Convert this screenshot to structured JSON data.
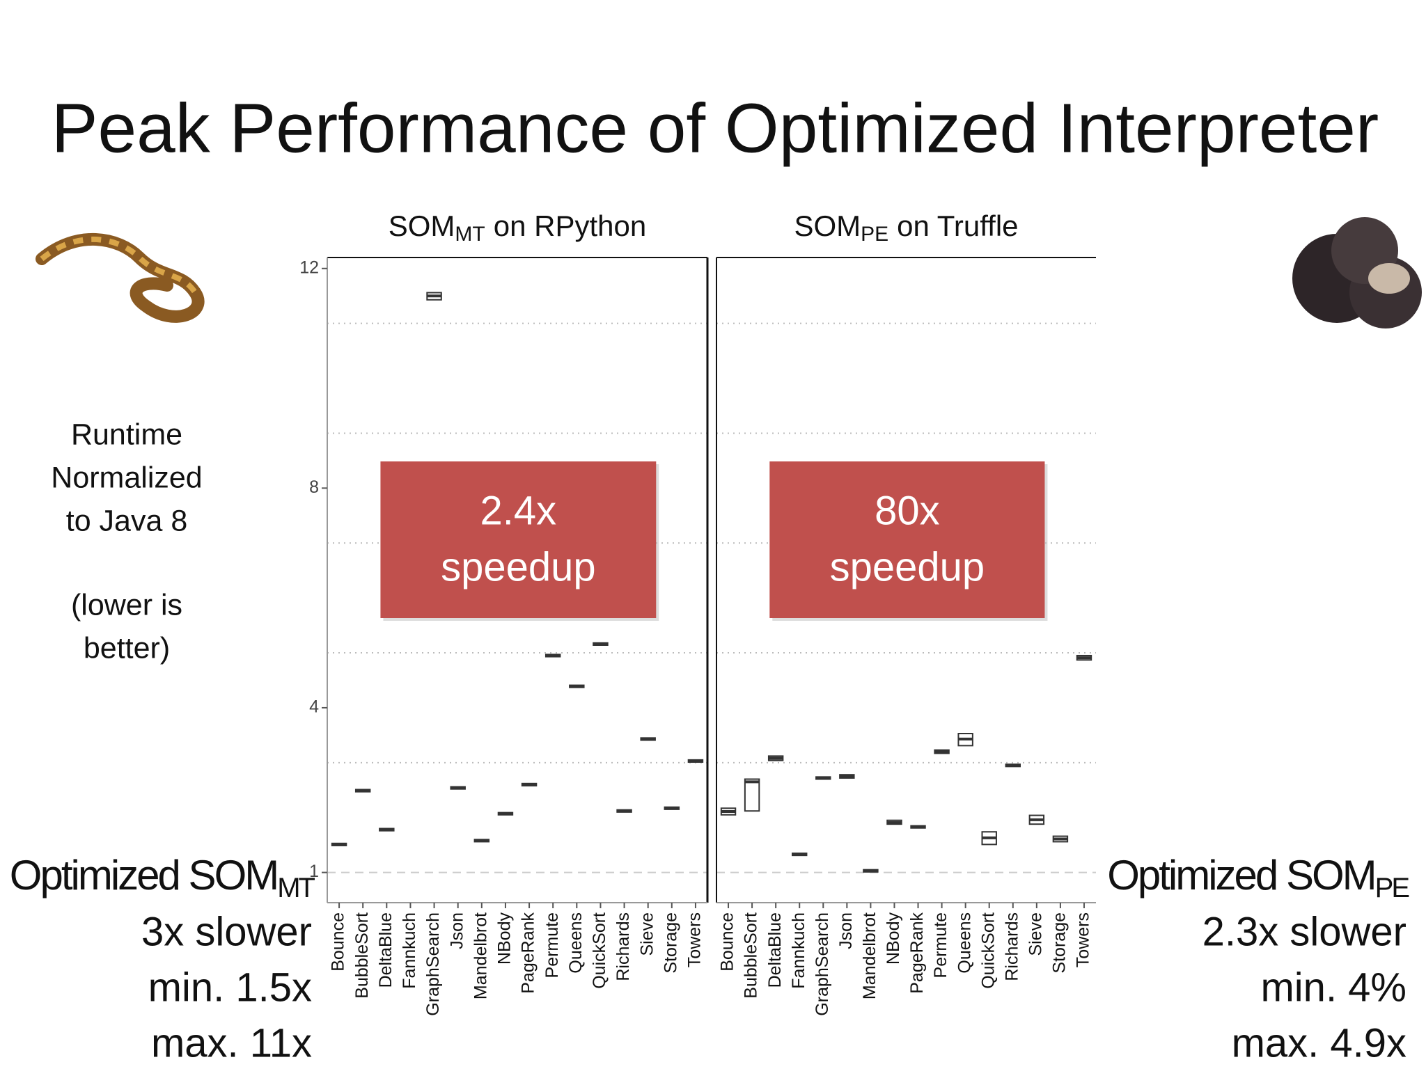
{
  "title": "Peak Performance of Optimized Interpreter",
  "y_label": [
    "Runtime",
    "Normalized",
    "to Java 8"
  ],
  "y_note": [
    "(lower is",
    "better)"
  ],
  "chart_data": [
    {
      "type": "box",
      "title_parts": [
        "SOM",
        "MT",
        "on RPython"
      ],
      "categories": [
        "Bounce",
        "BubbleSort",
        "DeltaBlue",
        "Fannkuch",
        "GraphSearch",
        "Json",
        "Mandelbrot",
        "NBody",
        "PageRank",
        "Permute",
        "Queens",
        "QuickSort",
        "Richards",
        "Sieve",
        "Storage",
        "Towers"
      ],
      "median": [
        1.51,
        2.49,
        1.78,
        null,
        11.5,
        2.54,
        1.58,
        2.07,
        2.6,
        4.95,
        4.39,
        5.16,
        2.12,
        3.43,
        2.17,
        3.03
      ],
      "q1": [
        1.49,
        2.47,
        1.76,
        null,
        11.43,
        2.52,
        1.56,
        2.05,
        2.58,
        4.93,
        4.37,
        5.14,
        2.1,
        3.41,
        2.15,
        3.01
      ],
      "q3": [
        1.53,
        2.51,
        1.8,
        null,
        11.56,
        2.56,
        1.6,
        2.09,
        2.62,
        4.97,
        4.41,
        5.18,
        2.14,
        3.45,
        2.19,
        3.05
      ],
      "ylim": [
        0.45,
        12.2
      ],
      "yticks": [
        1,
        4,
        8,
        12
      ],
      "yminor": [
        3,
        5,
        7,
        9,
        11
      ],
      "reference_line": 1,
      "color": "#333333",
      "annotation": [
        "2.4x",
        "speedup"
      ],
      "annotation_color": "#c0504d",
      "summary": {
        "label": "Optimized SOM",
        "label_sub": "MT",
        "lines": [
          "3x slower",
          "min. 1.5x",
          "max. 11x"
        ]
      }
    },
    {
      "type": "box",
      "title_parts": [
        "SOM",
        "PE",
        "on Truffle"
      ],
      "categories": [
        "Bounce",
        "BubbleSort",
        "DeltaBlue",
        "Fannkuch",
        "GraphSearch",
        "Json",
        "Mandelbrot",
        "NBody",
        "PageRank",
        "Permute",
        "Queens",
        "QuickSort",
        "Richards",
        "Sieve",
        "Storage",
        "Towers"
      ],
      "median": [
        2.11,
        2.65,
        3.08,
        1.33,
        2.72,
        2.75,
        1.03,
        1.91,
        1.83,
        3.2,
        3.43,
        1.63,
        2.95,
        1.96,
        1.61,
        4.91
      ],
      "q1": [
        2.05,
        2.12,
        3.04,
        1.31,
        2.7,
        2.72,
        1.01,
        1.88,
        1.81,
        3.17,
        3.31,
        1.51,
        2.93,
        1.88,
        1.56,
        4.87
      ],
      "q3": [
        2.17,
        2.7,
        3.12,
        1.35,
        2.74,
        2.78,
        1.05,
        1.95,
        1.85,
        3.23,
        3.53,
        1.74,
        2.97,
        2.04,
        1.66,
        4.95
      ],
      "ylim": [
        0.45,
        12.2
      ],
      "yminor": [
        3,
        5,
        7,
        9,
        11
      ],
      "reference_line": 1,
      "color": "#333333",
      "annotation": [
        "80x",
        "speedup"
      ],
      "annotation_color": "#c0504d",
      "summary": {
        "label": "Optimized SOM",
        "label_sub": "PE",
        "lines": [
          "2.3x slower",
          "min. 4%",
          "max. 4.9x"
        ]
      }
    }
  ]
}
